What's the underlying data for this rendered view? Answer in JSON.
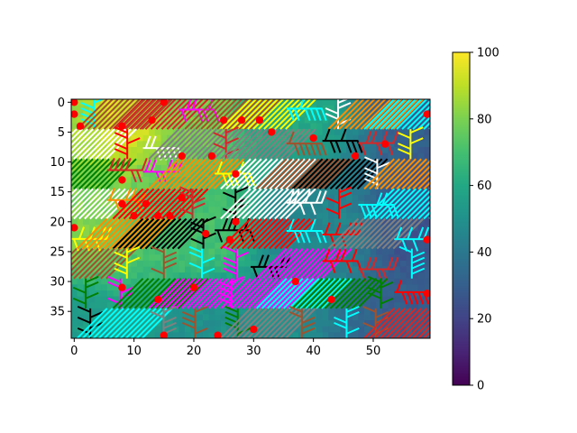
{
  "chart_data": {
    "type": "heatmap",
    "title": "",
    "xlabel": "",
    "ylabel": "",
    "grid_cols": 60,
    "grid_rows": 40,
    "xlim": [
      -0.5,
      59.5
    ],
    "ylim": [
      39.5,
      -0.5
    ],
    "x_ticks": [
      0,
      10,
      20,
      30,
      40,
      50
    ],
    "y_ticks": [
      0,
      5,
      10,
      15,
      20,
      25,
      30,
      35
    ],
    "colorbar": {
      "colormap": "viridis",
      "range": [
        0,
        100
      ],
      "ticks": [
        0,
        20,
        40,
        60,
        80,
        100
      ]
    },
    "background_field_control_points": [
      {
        "x": 0,
        "y": 0,
        "v": 85
      },
      {
        "x": 8,
        "y": 0,
        "v": 95
      },
      {
        "x": 20,
        "y": 0,
        "v": 80
      },
      {
        "x": 35,
        "y": 0,
        "v": 60
      },
      {
        "x": 59,
        "y": 0,
        "v": 30
      },
      {
        "x": 0,
        "y": 20,
        "v": 80
      },
      {
        "x": 20,
        "y": 20,
        "v": 70
      },
      {
        "x": 40,
        "y": 20,
        "v": 45
      },
      {
        "x": 59,
        "y": 20,
        "v": 25
      },
      {
        "x": 0,
        "y": 39,
        "v": 55
      },
      {
        "x": 25,
        "y": 39,
        "v": 50
      },
      {
        "x": 59,
        "y": 39,
        "v": 30
      }
    ],
    "overlay": {
      "description_colors": [
        "#ff0000",
        "#00ffff",
        "#ffffff",
        "#ff00ff",
        "#ffff00",
        "#000000",
        "#008000",
        "#a0522d",
        "#ff8c00",
        "#808080",
        "#d62728"
      ],
      "red_dots": [
        {
          "x": 0,
          "y": 0
        },
        {
          "x": 0,
          "y": 2
        },
        {
          "x": 1,
          "y": 4
        },
        {
          "x": 8,
          "y": 4
        },
        {
          "x": 13,
          "y": 3
        },
        {
          "x": 15,
          "y": 0
        },
        {
          "x": 25,
          "y": 3
        },
        {
          "x": 28,
          "y": 3
        },
        {
          "x": 31,
          "y": 3
        },
        {
          "x": 33,
          "y": 5
        },
        {
          "x": 40,
          "y": 6
        },
        {
          "x": 59,
          "y": 2
        },
        {
          "x": 8,
          "y": 13
        },
        {
          "x": 18,
          "y": 9
        },
        {
          "x": 23,
          "y": 9
        },
        {
          "x": 27,
          "y": 12
        },
        {
          "x": 8,
          "y": 17
        },
        {
          "x": 12,
          "y": 17
        },
        {
          "x": 18,
          "y": 16
        },
        {
          "x": 10,
          "y": 19
        },
        {
          "x": 14,
          "y": 19
        },
        {
          "x": 16,
          "y": 19
        },
        {
          "x": 27,
          "y": 20
        },
        {
          "x": 22,
          "y": 22
        },
        {
          "x": 26,
          "y": 23
        },
        {
          "x": 0,
          "y": 21
        },
        {
          "x": 52,
          "y": 7
        },
        {
          "x": 47,
          "y": 9
        },
        {
          "x": 59,
          "y": 23
        },
        {
          "x": 8,
          "y": 31
        },
        {
          "x": 14,
          "y": 33
        },
        {
          "x": 20,
          "y": 31
        },
        {
          "x": 37,
          "y": 30
        },
        {
          "x": 43,
          "y": 33
        },
        {
          "x": 59,
          "y": 32
        },
        {
          "x": 24,
          "y": 39
        },
        {
          "x": 15,
          "y": 39
        },
        {
          "x": 30,
          "y": 38
        }
      ]
    }
  }
}
